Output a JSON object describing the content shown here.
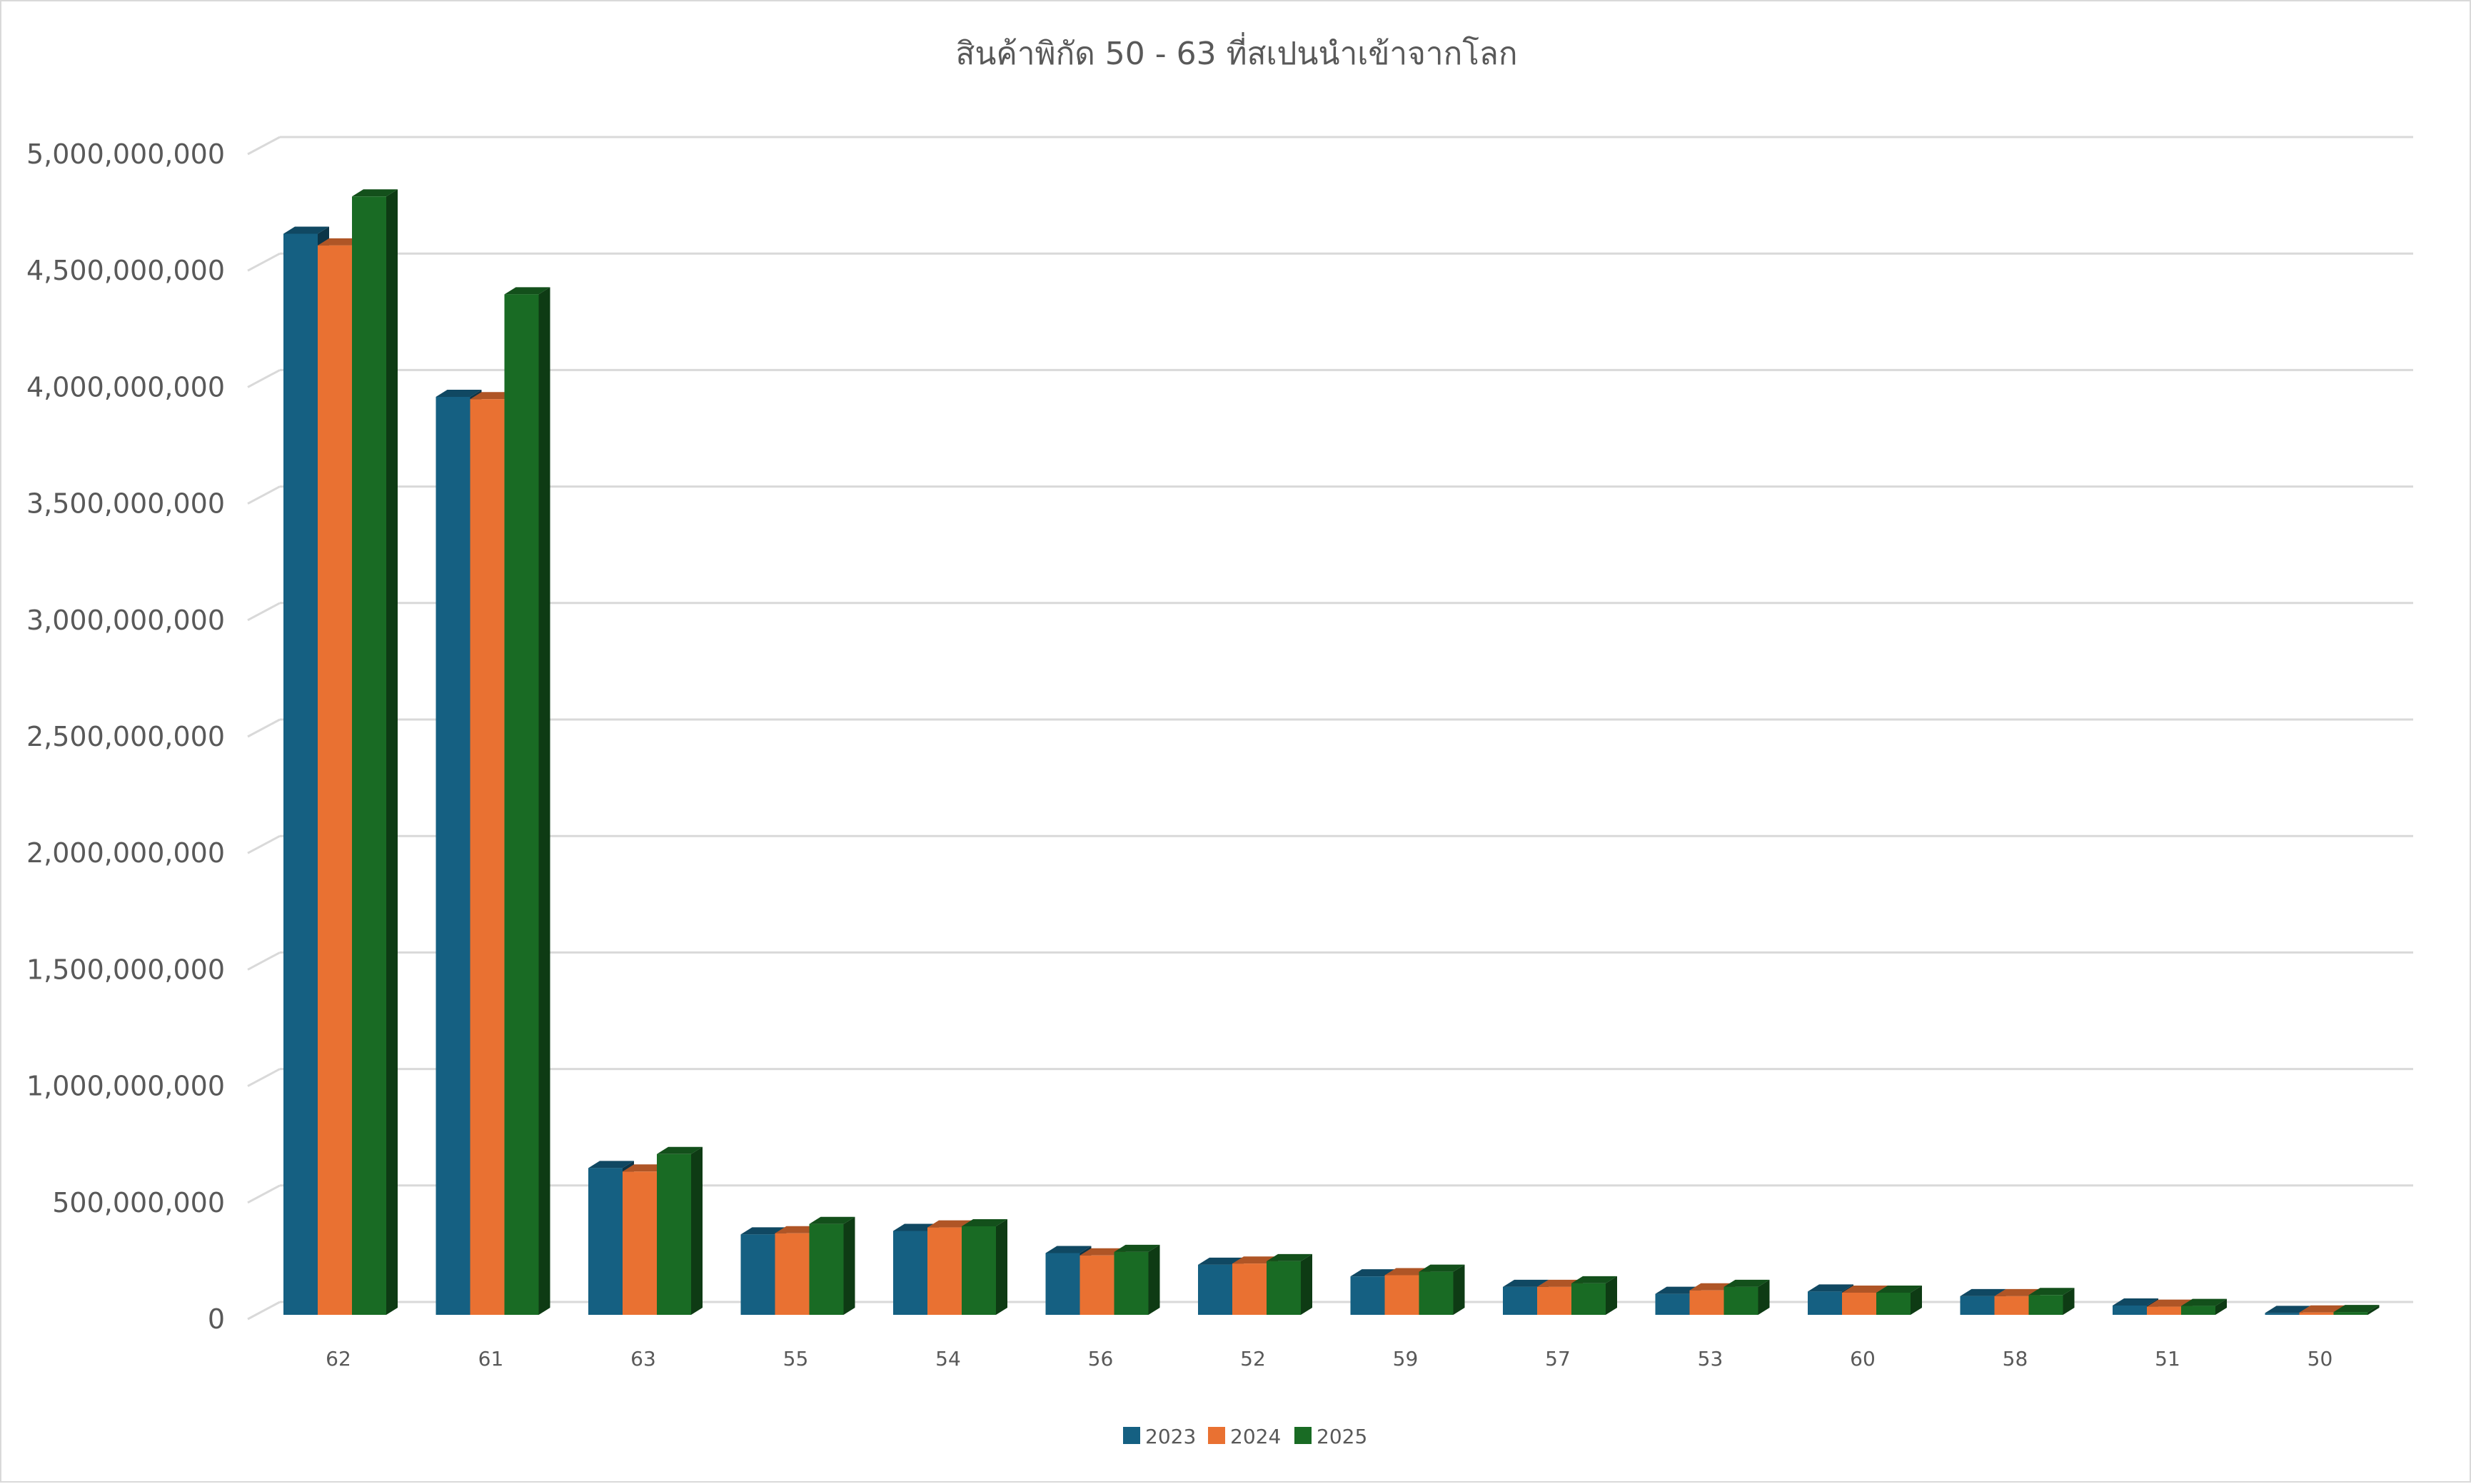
{
  "chart_data": {
    "type": "bar",
    "title": "สินค้าพิกัด 50 - 63 ที่สเปนนำเข้าจากโลก",
    "xlabel": "",
    "ylabel": "",
    "ylim": [
      0,
      5000000000
    ],
    "yticks": [
      0,
      500000000,
      1000000000,
      1500000000,
      2000000000,
      2500000000,
      3000000000,
      3500000000,
      4000000000,
      4500000000,
      5000000000
    ],
    "ytick_labels": [
      "0",
      "500,000,000",
      "1,000,000,000",
      "1,500,000,000",
      "2,000,000,000",
      "2,500,000,000",
      "3,000,000,000",
      "3,500,000,000",
      "4,000,000,000",
      "4,500,000,000",
      "5,000,000,000"
    ],
    "grid": true,
    "three_d": true,
    "legend": "bottom",
    "categories": [
      "62",
      "61",
      "63",
      "55",
      "54",
      "56",
      "52",
      "59",
      "57",
      "53",
      "60",
      "58",
      "51",
      "50"
    ],
    "series": [
      {
        "name": "2023",
        "color": "#156082",
        "values": [
          4640000000,
          3940000000,
          630000000,
          345000000,
          360000000,
          265000000,
          215000000,
          165000000,
          120000000,
          90000000,
          100000000,
          80000000,
          40000000,
          8000000
        ]
      },
      {
        "name": "2024",
        "color": "#E97132",
        "values": [
          4590000000,
          3930000000,
          615000000,
          350000000,
          375000000,
          255000000,
          220000000,
          170000000,
          120000000,
          105000000,
          95000000,
          80000000,
          35000000,
          10000000
        ]
      },
      {
        "name": "2025",
        "color": "#196B24",
        "values": [
          4800000000,
          4380000000,
          690000000,
          390000000,
          380000000,
          270000000,
          230000000,
          185000000,
          135000000,
          120000000,
          95000000,
          85000000,
          38000000,
          12000000
        ]
      }
    ]
  }
}
